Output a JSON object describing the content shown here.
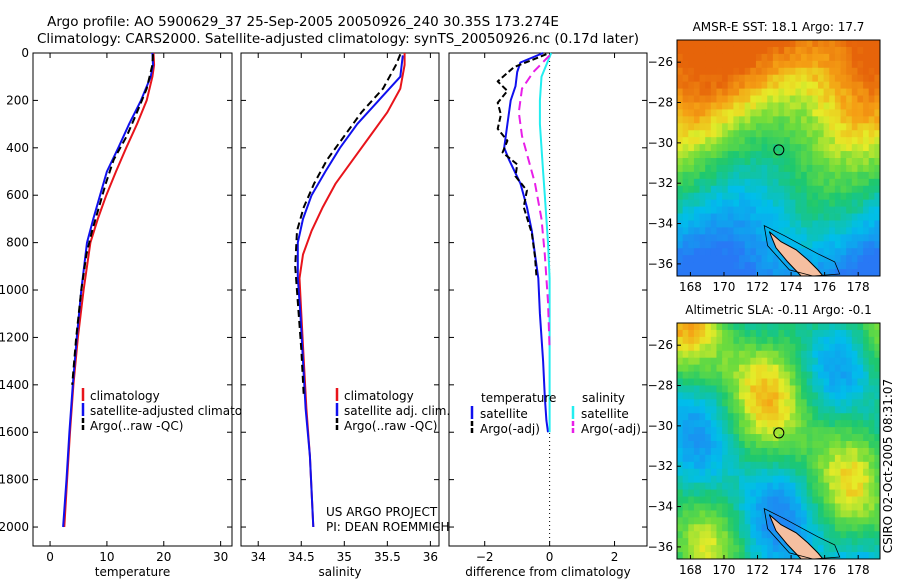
{
  "header": {
    "line1": "Argo profile: AO 5900629_37 25-Sep-2005 20050926_240 30.35S 173.274E",
    "line2": "Climatology: CARS2000. Satellite-adjusted climatology: synTS_20050926.nc (0.17d later)"
  },
  "footer": {
    "project": "US ARGO PROJECT",
    "pi": "PI: DEAN ROEMMICH",
    "stamp": "CSIRO 02-Oct-2005 08:31:07"
  },
  "colors": {
    "climatology": "#e8141b",
    "satellite": "#1010ee",
    "argo": "#000000",
    "satellite_salinity": "#22eef0",
    "argo_salinity": "#e81ee8"
  },
  "chart_data": [
    {
      "type": "line",
      "id": "temperature",
      "xlabel": "temperature",
      "ylabel": "",
      "xlim": [
        -3,
        32
      ],
      "ylim": [
        2080,
        0
      ],
      "xticks": [
        0,
        10,
        20,
        30
      ],
      "yticks": [
        0,
        200,
        400,
        600,
        800,
        1000,
        1200,
        1400,
        1600,
        1800,
        2000
      ],
      "series": [
        {
          "name": "climatology",
          "color": "#e8141b",
          "dash": "",
          "x": [
            18.2,
            18.3,
            18.0,
            17.0,
            15.3,
            13.4,
            11.6,
            9.9,
            8.4,
            7.1,
            5.9,
            4.9,
            4.1,
            3.5,
            3.0,
            2.5
          ],
          "y": [
            0,
            50,
            100,
            200,
            300,
            400,
            500,
            600,
            700,
            800,
            1000,
            1200,
            1400,
            1600,
            1800,
            2000
          ]
        },
        {
          "name": "satellite-adjusted climatology",
          "color": "#1010ee",
          "dash": "",
          "x": [
            18.0,
            18.1,
            17.7,
            16.0,
            13.9,
            12.0,
            10.0,
            8.8,
            7.6,
            6.5,
            5.5,
            4.7,
            4.0,
            3.4,
            2.9,
            2.3
          ],
          "y": [
            0,
            50,
            100,
            200,
            300,
            400,
            500,
            600,
            700,
            800,
            1000,
            1200,
            1400,
            1600,
            1800,
            2000
          ]
        },
        {
          "name": "Argo(..raw -QC)",
          "color": "#000000",
          "dash": "7,4",
          "x": [
            18.1,
            18.0,
            17.0,
            15.3,
            13.5,
            11.2,
            9.8,
            8.6,
            7.4,
            6.4,
            5.5,
            4.6,
            3.9
          ],
          "y": [
            5,
            50,
            150,
            250,
            350,
            450,
            550,
            650,
            750,
            850,
            1000,
            1200,
            1400
          ]
        }
      ],
      "legend": [
        "climatology",
        "satellite-adjusted climatolog",
        "Argo(..raw -QC)"
      ]
    },
    {
      "type": "line",
      "id": "salinity",
      "xlabel": "salinity",
      "ylabel": "",
      "xlim": [
        33.8,
        36.1
      ],
      "ylim": [
        2080,
        0
      ],
      "xticks": [
        34,
        34.5,
        35,
        35.5,
        36
      ],
      "xticklabels": [
        "34",
        "34.5",
        "35",
        "35.5",
        "36"
      ],
      "series": [
        {
          "name": "climatology",
          "color": "#e8141b",
          "dash": "",
          "x": [
            35.7,
            35.7,
            35.65,
            35.5,
            35.3,
            35.1,
            34.9,
            34.75,
            34.62,
            34.52,
            34.48,
            34.5,
            34.53,
            34.56,
            34.6,
            34.64
          ],
          "y": [
            0,
            50,
            150,
            250,
            350,
            450,
            550,
            650,
            750,
            850,
            950,
            1100,
            1300,
            1500,
            1700,
            2000
          ]
        },
        {
          "name": "satellite adj. clim.",
          "color": "#1010ee",
          "dash": "",
          "x": [
            35.68,
            35.65,
            35.4,
            35.15,
            34.95,
            34.78,
            34.62,
            34.52,
            34.46,
            34.46,
            34.49,
            34.52,
            34.55,
            34.6,
            34.64
          ],
          "y": [
            10,
            100,
            200,
            300,
            400,
            500,
            600,
            700,
            800,
            950,
            1100,
            1300,
            1500,
            1700,
            2000
          ]
        },
        {
          "name": "Argo(..raw -QC)",
          "color": "#000000",
          "dash": "7,4",
          "x": [
            35.65,
            35.6,
            35.45,
            35.2,
            35.0,
            34.8,
            34.65,
            34.53,
            34.45,
            34.43,
            34.46,
            34.5,
            34.53
          ],
          "y": [
            5,
            50,
            150,
            250,
            350,
            450,
            550,
            650,
            750,
            900,
            1050,
            1250,
            1450
          ]
        }
      ],
      "legend": [
        "climatology",
        "satellite adj. clim.",
        "Argo(..raw -QC)"
      ]
    },
    {
      "type": "line",
      "id": "difference",
      "xlabel": "difference from climatology",
      "ylabel": "",
      "xlim": [
        -3.1,
        3.0
      ],
      "ylim": [
        2080,
        0
      ],
      "xticks": [
        -2,
        0,
        2
      ],
      "xticklabels": [
        "−2",
        "0",
        "2"
      ],
      "series": [
        {
          "name": "temperature satellite",
          "color": "#1010ee",
          "dash": "",
          "x": [
            -0.2,
            -0.9,
            -1.0,
            -1.05,
            -1.2,
            -1.3,
            -1.4,
            -1.25,
            -0.9,
            -0.7,
            -0.55,
            -0.45,
            -0.35,
            -0.3,
            -0.2,
            -0.15,
            -0.1,
            -0.05
          ],
          "y": [
            0,
            40,
            80,
            140,
            200,
            300,
            400,
            450,
            550,
            650,
            750,
            850,
            950,
            1100,
            1300,
            1450,
            1550,
            1600
          ]
        },
        {
          "name": "temperature Argo(-adj)",
          "color": "#000000",
          "dash": "6,3",
          "x": [
            -0.1,
            -1.1,
            -1.6,
            -1.3,
            -1.6,
            -1.5,
            -1.6,
            -1.3,
            -1.45,
            -1.0,
            -1.05,
            -0.7,
            -0.8,
            -0.55,
            -0.45,
            -0.4
          ],
          "y": [
            5,
            60,
            120,
            160,
            210,
            260,
            320,
            370,
            420,
            470,
            520,
            580,
            650,
            760,
            860,
            950
          ]
        },
        {
          "name": "salinity satellite",
          "color": "#22eef0",
          "dash": "",
          "x": [
            0.05,
            -0.25,
            -0.3,
            -0.3,
            -0.25,
            -0.2,
            -0.15,
            -0.1,
            -0.05,
            0.0,
            0.0,
            0.0
          ],
          "y": [
            0,
            100,
            200,
            300,
            400,
            500,
            600,
            700,
            800,
            950,
            1200,
            1600
          ]
        },
        {
          "name": "salinity Argo(-adj)",
          "color": "#e81ee8",
          "dash": "9,5",
          "x": [
            0.0,
            -0.5,
            -0.85,
            -0.95,
            -0.85,
            -0.65,
            -0.45,
            -0.25,
            -0.15,
            -0.05,
            0.0
          ],
          "y": [
            10,
            80,
            150,
            250,
            350,
            450,
            550,
            700,
            850,
            1050,
            1250
          ]
        }
      ],
      "legend_title_left": "temperature",
      "legend_title_right": "salinity",
      "legend": [
        "satellite",
        "Argo(-adj)",
        "satellite",
        "Argo(-adj)"
      ]
    },
    {
      "type": "heatmap",
      "id": "sst-map",
      "title": "AMSR-E SST: 18.1 Argo: 17.7",
      "xlim": [
        167.2,
        179.3
      ],
      "ylim": [
        -36.6,
        -24.9
      ],
      "xticks": [
        168,
        170,
        172,
        174,
        176,
        178
      ],
      "yticks": [
        -26,
        -28,
        -30,
        -32,
        -34,
        -36
      ],
      "marker": {
        "x": 173.27,
        "y": -30.35
      }
    },
    {
      "type": "heatmap",
      "id": "sla-map",
      "title": "Altimetric SLA: -0.11 Argo: -0.1",
      "xlim": [
        167.2,
        179.3
      ],
      "ylim": [
        -36.6,
        -24.9
      ],
      "xticks": [
        168,
        170,
        172,
        174,
        176,
        178
      ],
      "yticks": [
        -26,
        -28,
        -30,
        -32,
        -34,
        -36
      ],
      "marker": {
        "x": 173.27,
        "y": -30.35
      }
    }
  ]
}
